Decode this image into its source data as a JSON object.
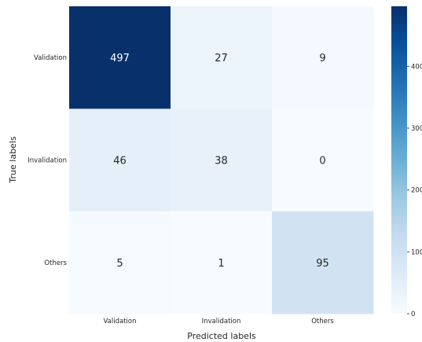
{
  "chart_data": {
    "type": "heatmap",
    "title": "",
    "xlabel": "Predicted labels",
    "ylabel": "True labels",
    "x_categories": [
      "Validation",
      "Invalidation",
      "Others"
    ],
    "y_categories": [
      "Validation",
      "Invalidation",
      "Others"
    ],
    "values": [
      [
        497,
        27,
        9
      ],
      [
        46,
        38,
        0
      ],
      [
        5,
        1,
        95
      ]
    ],
    "colormap": "Blues",
    "color_low": "#f7fbff",
    "color_high": "#08306b",
    "colorbar": {
      "range": [
        0,
        497
      ],
      "ticks": [
        0,
        100,
        200,
        300,
        400
      ],
      "tick_labels": [
        "0",
        "100",
        "200",
        "300",
        "400"
      ]
    },
    "annotations": true,
    "grid": false,
    "legend": "colorbar-right"
  }
}
